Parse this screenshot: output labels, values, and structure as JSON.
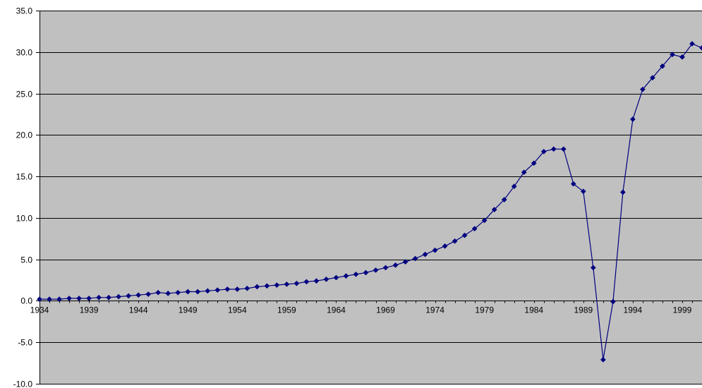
{
  "chart_data": {
    "type": "line",
    "title": "",
    "xlabel": "",
    "ylabel": "",
    "x_start": 1934,
    "x_end": 2001,
    "xlim": [
      1934,
      2001
    ],
    "ylim": [
      -10,
      35
    ],
    "grid": true,
    "legend": "none",
    "colors": {
      "plot_bg": "#c0c0c0",
      "series": "#000080",
      "grid": "#000000"
    },
    "x_tick_labels": [
      "1934",
      "1939",
      "1944",
      "1949",
      "1954",
      "1959",
      "1964",
      "1969",
      "1974",
      "1979",
      "1984",
      "1989",
      "1994",
      "1999"
    ],
    "y_tick_labels": [
      "35.0",
      "30.0",
      "25.0",
      "20.0",
      "15.0",
      "10.0",
      "5.0",
      "0.0",
      "-5.0",
      "-10.0"
    ],
    "series": [
      {
        "x": [
          1934,
          1935,
          1936,
          1937,
          1938,
          1939,
          1940,
          1941,
          1942,
          1943,
          1944,
          1945,
          1946,
          1947,
          1948,
          1949,
          1950,
          1951,
          1952,
          1953,
          1954,
          1955,
          1956,
          1957,
          1958,
          1959,
          1960,
          1961,
          1962,
          1963,
          1964,
          1965,
          1966,
          1967,
          1968,
          1969,
          1970,
          1971,
          1972,
          1973,
          1974,
          1975,
          1976,
          1977,
          1978,
          1979,
          1980,
          1981,
          1982,
          1983,
          1984,
          1985,
          1986,
          1987,
          1988,
          1989,
          1990,
          1991,
          1992,
          1993,
          1994,
          1995,
          1996,
          1997,
          1998,
          1999,
          2000,
          2001
        ],
        "values": [
          0.2,
          0.2,
          0.2,
          0.3,
          0.3,
          0.3,
          0.4,
          0.4,
          0.5,
          0.6,
          0.7,
          0.8,
          1.0,
          0.9,
          1.0,
          1.1,
          1.1,
          1.2,
          1.3,
          1.4,
          1.4,
          1.5,
          1.7,
          1.8,
          1.9,
          2.0,
          2.1,
          2.3,
          2.4,
          2.6,
          2.8,
          3.0,
          3.2,
          3.4,
          3.7,
          4.0,
          4.3,
          4.7,
          5.1,
          5.6,
          6.1,
          6.6,
          7.2,
          7.9,
          8.7,
          9.7,
          11.0,
          12.2,
          13.8,
          15.5,
          16.6,
          18.0,
          18.3,
          18.3,
          14.1,
          13.2,
          4.0,
          -7.1,
          -0.1,
          13.1,
          21.9,
          25.5,
          26.9,
          28.3,
          29.7,
          29.4,
          31.0,
          30.5
        ]
      }
    ]
  }
}
